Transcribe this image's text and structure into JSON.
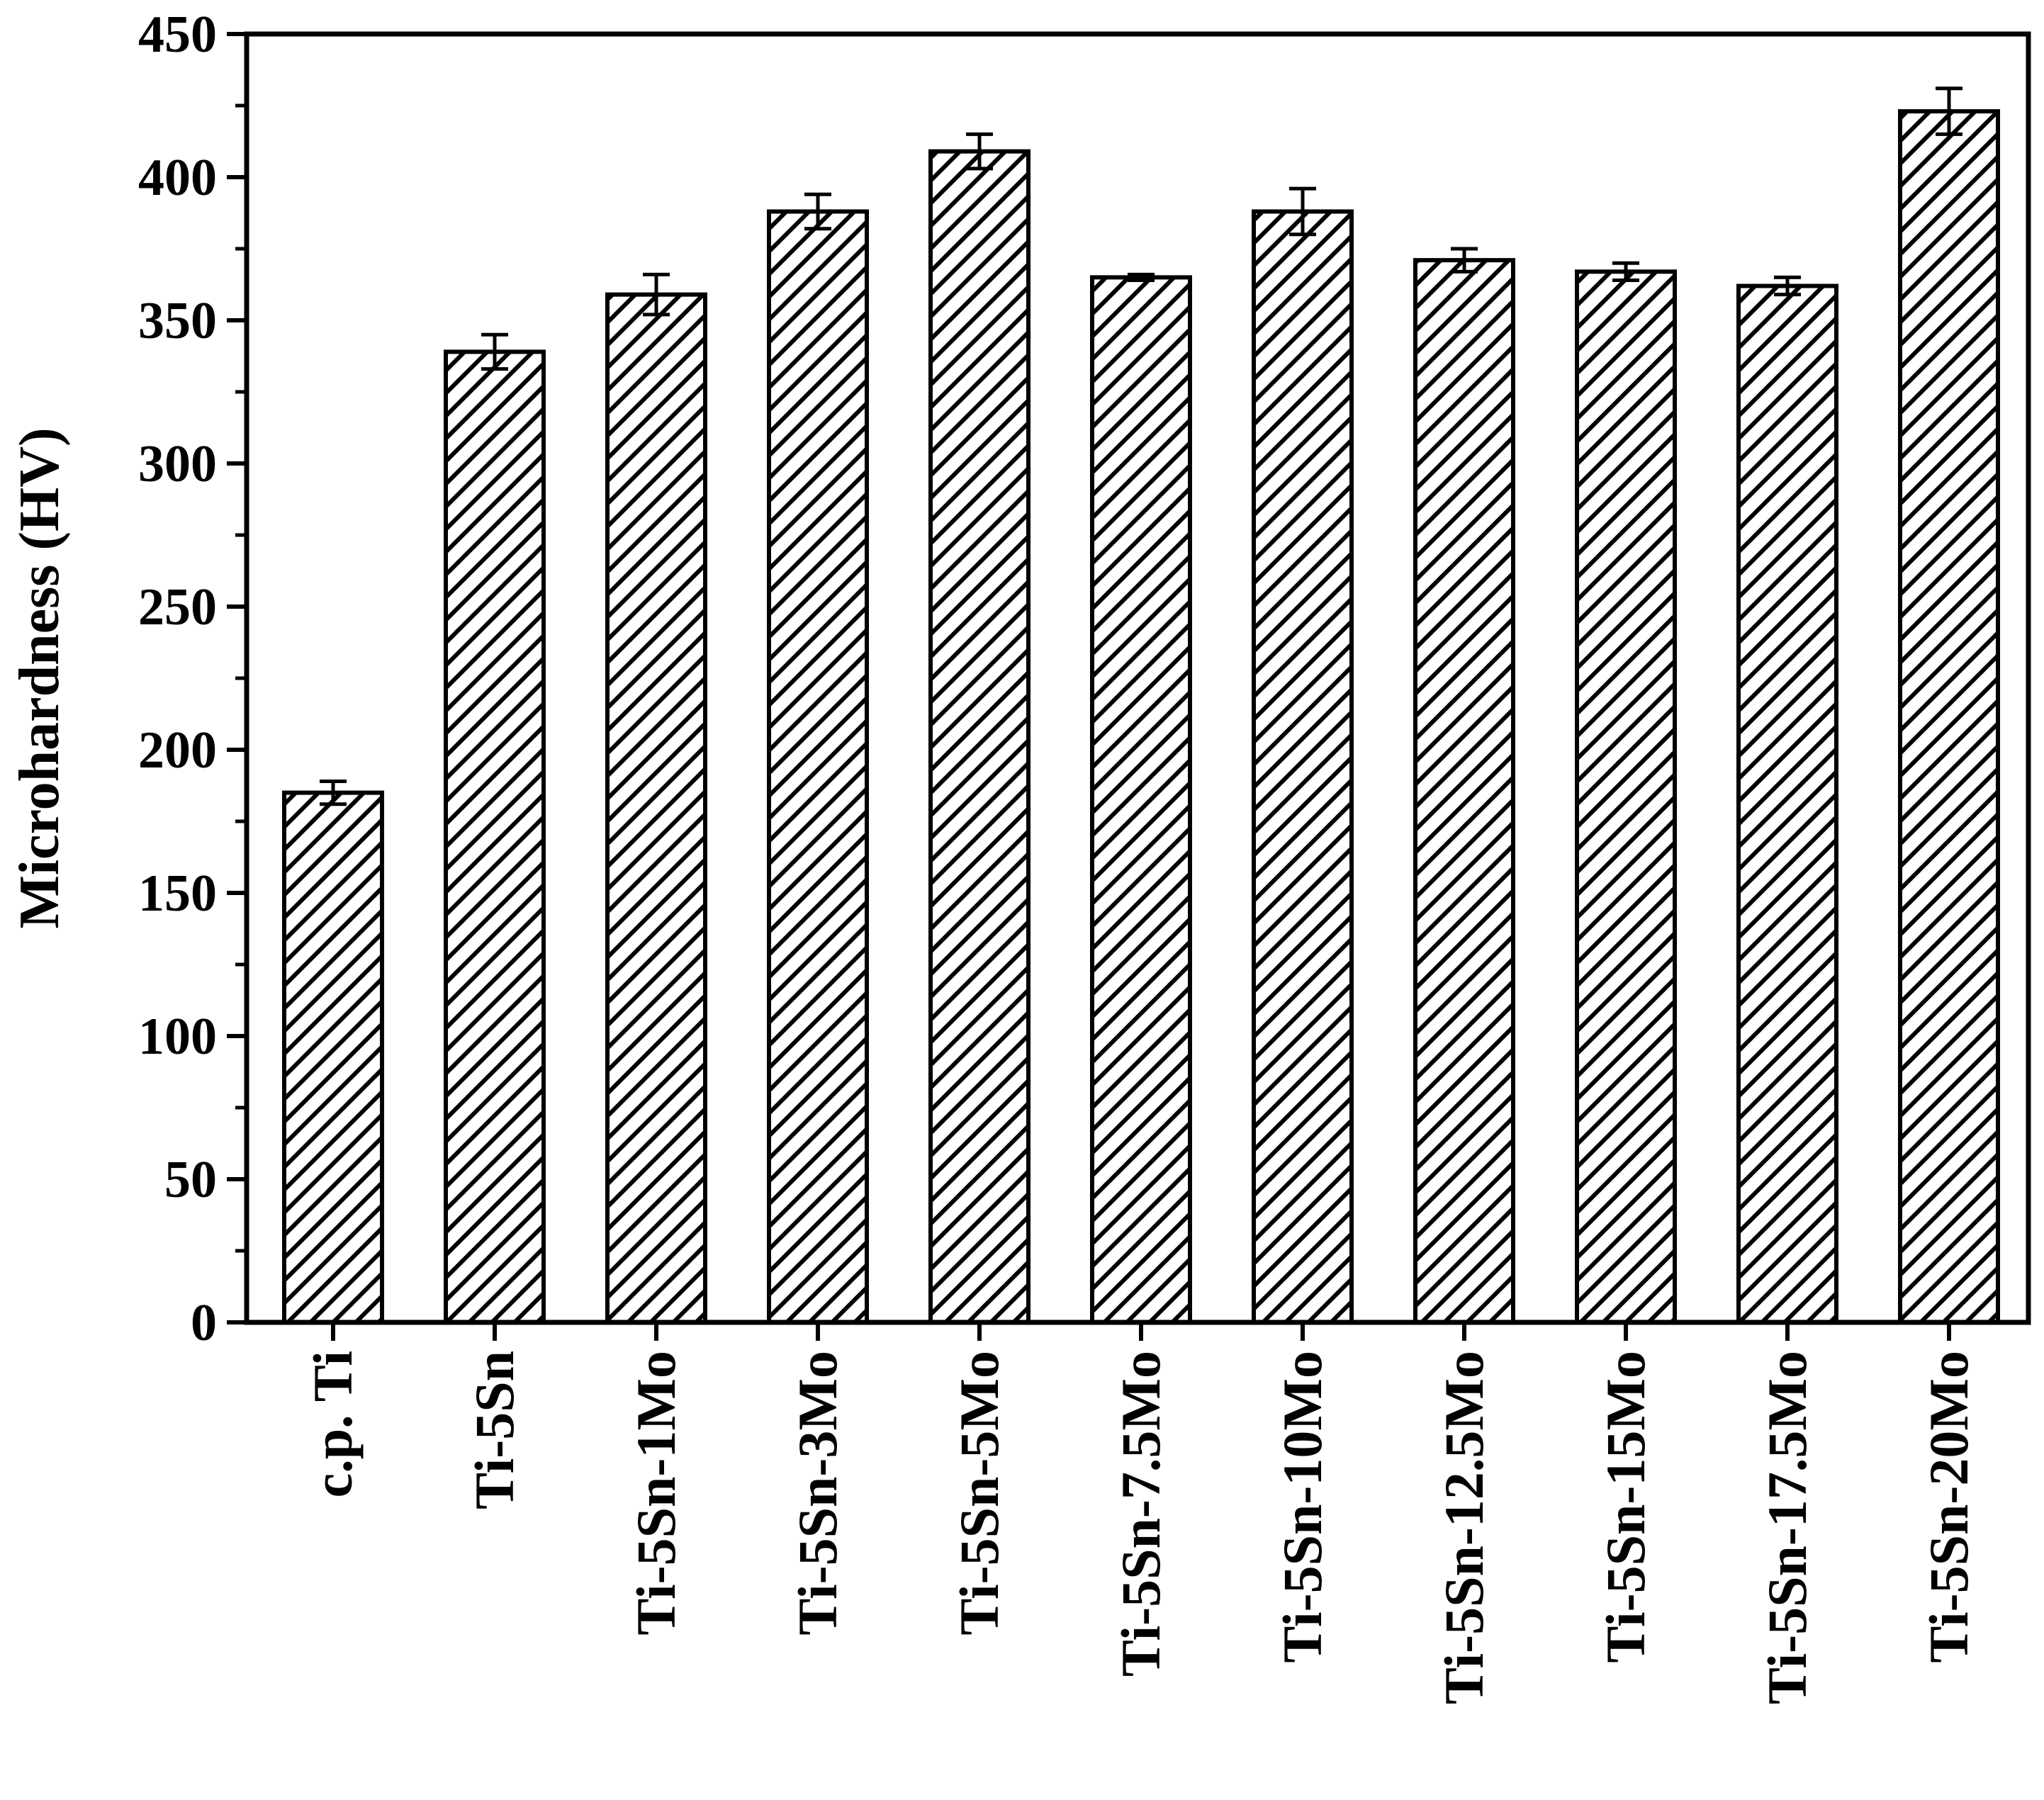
{
  "chart_data": {
    "type": "bar",
    "title": "",
    "xlabel": "",
    "ylabel": "Microhardness (HV)",
    "ylim": [
      0,
      450
    ],
    "yticks": [
      0,
      50,
      100,
      150,
      200,
      250,
      300,
      350,
      400,
      450
    ],
    "grid": false,
    "legend": "none",
    "bar_fill": "diagonal hatch",
    "categories": [
      "c.p. Ti",
      "Ti-5Sn",
      "Ti-5Sn-1Mo",
      "Ti-5Sn-3Mo",
      "Ti-5Sn-5Mo",
      "Ti-5Sn-7.5Mo",
      "Ti-5Sn-10Mo",
      "Ti-5Sn-12.5Mo",
      "Ti-5Sn-15Mo",
      "Ti-5Sn-17.5Mo",
      "Ti-5Sn-20Mo"
    ],
    "values": [
      185,
      339,
      359,
      388,
      409,
      365,
      388,
      371,
      367,
      362,
      423
    ],
    "errors": [
      4,
      6,
      7,
      6,
      6,
      1,
      8,
      4,
      3,
      3,
      8
    ]
  },
  "colors": {
    "ink": "#000000",
    "background": "#ffffff"
  }
}
